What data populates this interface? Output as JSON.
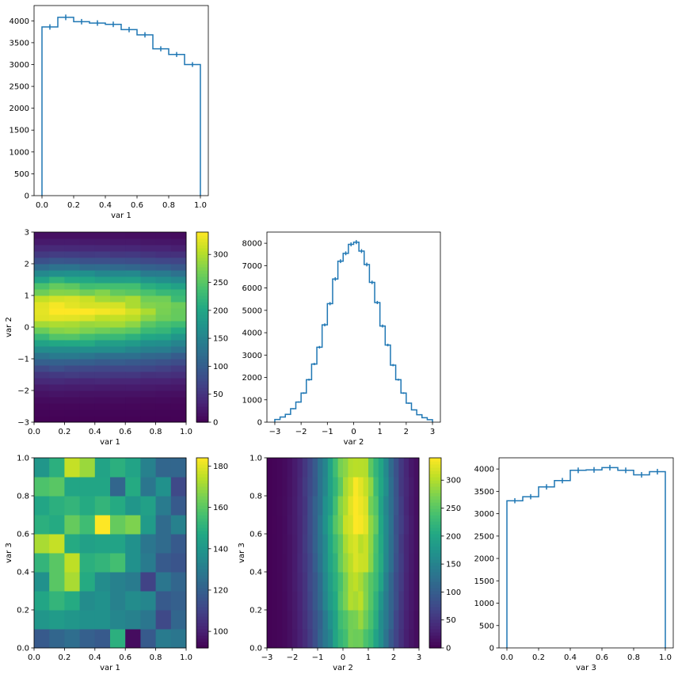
{
  "colors": {
    "line": "#1f77b4",
    "axes": "#000000"
  },
  "chart_data": [
    {
      "id": "hist_var1",
      "type": "histogram-step",
      "xlabel": "var 1",
      "xlim": [
        -0.05,
        1.05
      ],
      "ylim": [
        0,
        4350
      ],
      "xticks": [
        0.0,
        0.2,
        0.4,
        0.6,
        0.8,
        1.0
      ],
      "xticklabels": [
        "0.0",
        "0.2",
        "0.4",
        "0.6",
        "0.8",
        "1.0"
      ],
      "yticks": [
        0,
        500,
        1000,
        1500,
        2000,
        2500,
        3000,
        3500,
        4000
      ],
      "yticklabels": [
        "0",
        "500",
        "1000",
        "1500",
        "2000",
        "2500",
        "3000",
        "3500",
        "4000"
      ],
      "bin_edges": [
        0.0,
        0.1,
        0.2,
        0.3,
        0.4,
        0.5,
        0.6,
        0.7,
        0.8,
        0.9,
        1.0
      ],
      "values": [
        3860,
        4080,
        3980,
        3950,
        3920,
        3800,
        3680,
        3360,
        3230,
        3000
      ],
      "errors": [
        62,
        64,
        63,
        63,
        63,
        62,
        61,
        58,
        57,
        55
      ]
    },
    {
      "id": "heat_var1_var2",
      "type": "heatmap",
      "xlabel": "var 1",
      "ylabel": "var 2",
      "xlim": [
        0,
        1
      ],
      "ylim": [
        -3,
        3
      ],
      "xticks": [
        0.0,
        0.2,
        0.4,
        0.6,
        0.8,
        1.0
      ],
      "xticklabels": [
        "0.0",
        "0.2",
        "0.4",
        "0.6",
        "0.8",
        "1.0"
      ],
      "yticks": [
        -3,
        -2,
        -1,
        0,
        1,
        2,
        3
      ],
      "yticklabels": [
        "−3",
        "−2",
        "−1",
        "0",
        "1",
        "2",
        "3"
      ],
      "nx": 10,
      "ny": 30,
      "value_range": [
        0,
        340
      ],
      "column_scale": [
        1.0,
        1.06,
        1.04,
        1.02,
        1.0,
        0.99,
        0.96,
        0.9,
        0.86,
        0.8
      ],
      "row_profile": [
        2,
        4,
        6,
        10,
        17,
        26,
        38,
        55,
        75,
        100,
        128,
        160,
        195,
        230,
        262,
        290,
        312,
        322,
        318,
        300,
        270,
        238,
        200,
        160,
        120,
        85,
        58,
        38,
        24,
        14
      ],
      "colorbar_ticks": [
        0,
        50,
        100,
        150,
        200,
        250,
        300
      ],
      "colorbar_labels": [
        "0",
        "50",
        "100",
        "150",
        "200",
        "250",
        "300"
      ]
    },
    {
      "id": "hist_var2",
      "type": "histogram-step",
      "xlabel": "var 2",
      "xlim": [
        -3.3,
        3.3
      ],
      "ylim": [
        0,
        8500
      ],
      "xticks": [
        -3,
        -2,
        -1,
        0,
        1,
        2,
        3
      ],
      "xticklabels": [
        "−3",
        "−2",
        "−1",
        "0",
        "1",
        "2",
        "3"
      ],
      "yticks": [
        0,
        1000,
        2000,
        3000,
        4000,
        5000,
        6000,
        7000,
        8000
      ],
      "yticklabels": [
        "0",
        "1000",
        "2000",
        "3000",
        "4000",
        "5000",
        "6000",
        "7000",
        "8000"
      ],
      "bin_edges": [
        -3.0,
        -2.8,
        -2.6,
        -2.4,
        -2.2,
        -2.0,
        -1.8,
        -1.6,
        -1.4,
        -1.2,
        -1.0,
        -0.8,
        -0.6,
        -0.4,
        -0.2,
        0.0,
        0.2,
        0.4,
        0.6,
        0.8,
        1.0,
        1.2,
        1.4,
        1.6,
        1.8,
        2.0,
        2.2,
        2.4,
        2.6,
        2.8,
        3.0
      ],
      "values": [
        120,
        230,
        350,
        600,
        900,
        1300,
        1900,
        2600,
        3350,
        4350,
        5300,
        6400,
        7200,
        7550,
        7950,
        8050,
        7650,
        7050,
        6250,
        5350,
        4300,
        3450,
        2550,
        1900,
        1300,
        850,
        550,
        330,
        200,
        110
      ],
      "errors": [
        11,
        15,
        19,
        24,
        30,
        36,
        44,
        51,
        58,
        66,
        73,
        80,
        85,
        87,
        89,
        90,
        87,
        84,
        79,
        73,
        66,
        59,
        50,
        44,
        36,
        29,
        23,
        18,
        14,
        10
      ]
    },
    {
      "id": "heat_var1_var3",
      "type": "heatmap",
      "xlabel": "var 1",
      "ylabel": "var 3",
      "xlim": [
        0,
        1
      ],
      "ylim": [
        0,
        1
      ],
      "xticks": [
        0.0,
        0.2,
        0.4,
        0.6,
        0.8,
        1.0
      ],
      "xticklabels": [
        "0.0",
        "0.2",
        "0.4",
        "0.6",
        "0.8",
        "1.0"
      ],
      "yticks": [
        0.0,
        0.2,
        0.4,
        0.6,
        0.8,
        1.0
      ],
      "yticklabels": [
        "0.0",
        "0.2",
        "0.4",
        "0.6",
        "0.8",
        "1.0"
      ],
      "nx": 10,
      "ny": 10,
      "value_range": [
        92,
        184
      ],
      "cells": [
        [
          118,
          122,
          125,
          120,
          118,
          150,
          95,
          118,
          130,
          128
        ],
        [
          140,
          142,
          140,
          138,
          138,
          134,
          132,
          128,
          112,
          122
        ],
        [
          146,
          152,
          148,
          136,
          138,
          132,
          136,
          134,
          118,
          120
        ],
        [
          138,
          160,
          172,
          148,
          136,
          132,
          130,
          110,
          128,
          122
        ],
        [
          152,
          160,
          175,
          150,
          152,
          156,
          138,
          130,
          118,
          116
        ],
        [
          172,
          176,
          148,
          144,
          145,
          145,
          138,
          128,
          124,
          118
        ],
        [
          150,
          148,
          162,
          155,
          184,
          162,
          166,
          142,
          124,
          132
        ],
        [
          146,
          150,
          152,
          148,
          152,
          148,
          140,
          144,
          130,
          118
        ],
        [
          158,
          160,
          146,
          146,
          146,
          122,
          148,
          128,
          138,
          112
        ],
        [
          140,
          150,
          176,
          170,
          145,
          150,
          145,
          132,
          122,
          122
        ]
      ],
      "colorbar_ticks": [
        100,
        120,
        140,
        160,
        180
      ],
      "colorbar_labels": [
        "100",
        "120",
        "140",
        "160",
        "180"
      ]
    },
    {
      "id": "heat_var2_var3",
      "type": "heatmap",
      "xlabel": "var 2",
      "ylabel": "var 3",
      "xlim": [
        -3,
        3
      ],
      "ylim": [
        0,
        1
      ],
      "xticks": [
        -3,
        -2,
        -1,
        0,
        1,
        2,
        3
      ],
      "xticklabels": [
        "−3",
        "−2",
        "−1",
        "0",
        "1",
        "2",
        "3"
      ],
      "yticks": [
        0.0,
        0.2,
        0.4,
        0.6,
        0.8,
        1.0
      ],
      "yticklabels": [
        "0.0",
        "0.2",
        "0.4",
        "0.6",
        "0.8",
        "1.0"
      ],
      "nx": 30,
      "ny": 10,
      "value_range": [
        0,
        340
      ],
      "column_profile": [
        2,
        4,
        6,
        10,
        17,
        26,
        38,
        55,
        75,
        100,
        128,
        160,
        195,
        230,
        262,
        290,
        312,
        322,
        318,
        300,
        270,
        238,
        200,
        160,
        120,
        85,
        58,
        38,
        24,
        14
      ],
      "row_scale": [
        0.82,
        0.86,
        0.92,
        0.96,
        1.0,
        1.0,
        1.04,
        1.02,
        1.0,
        0.98
      ],
      "colorbar_ticks": [
        0,
        50,
        100,
        150,
        200,
        250,
        300
      ],
      "colorbar_labels": [
        "0",
        "50",
        "100",
        "150",
        "200",
        "250",
        "300"
      ]
    },
    {
      "id": "hist_var3",
      "type": "histogram-step",
      "xlabel": "var 3",
      "xlim": [
        -0.05,
        1.05
      ],
      "ylim": [
        0,
        4250
      ],
      "xticks": [
        0.0,
        0.2,
        0.4,
        0.6,
        0.8,
        1.0
      ],
      "xticklabels": [
        "0.0",
        "0.2",
        "0.4",
        "0.6",
        "0.8",
        "1.0"
      ],
      "yticks": [
        0,
        500,
        1000,
        1500,
        2000,
        2500,
        3000,
        3500,
        4000
      ],
      "yticklabels": [
        "0",
        "500",
        "1000",
        "1500",
        "2000",
        "2500",
        "3000",
        "3500",
        "4000"
      ],
      "bin_edges": [
        0.0,
        0.1,
        0.2,
        0.3,
        0.4,
        0.5,
        0.6,
        0.7,
        0.8,
        0.9,
        1.0
      ],
      "values": [
        3290,
        3380,
        3600,
        3740,
        3970,
        3980,
        4030,
        3970,
        3870,
        3940
      ],
      "errors": [
        57,
        58,
        60,
        61,
        63,
        63,
        63,
        63,
        62,
        63
      ]
    }
  ]
}
